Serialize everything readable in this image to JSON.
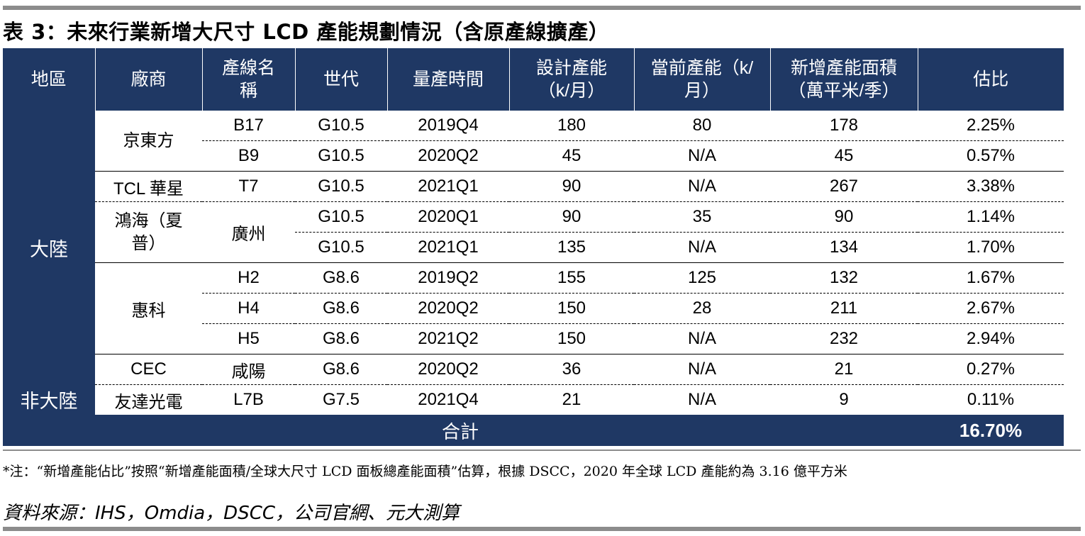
{
  "title": "表 3：未來行業新增大尺寸 LCD 產能規劃情況（含原產線擴產）",
  "headers": {
    "region": "地區",
    "vendor": "廠商",
    "line_name": "產線名稱",
    "generation": "世代",
    "mass_production": "量產時間",
    "design_capacity": "設計產能（k/月）",
    "current_capacity": "當前產能（k/月）",
    "new_area": "新增產能面積（萬平米/季）",
    "share": "估比"
  },
  "regions": {
    "mainland": "大陸",
    "non_mainland": "非大陸"
  },
  "vendors": {
    "boe": "京東方",
    "tcl": "TCL 華星",
    "foxconn": "鴻海（夏普）",
    "foxconn_line": "廣州",
    "hkc": "惠科",
    "cec": "CEC",
    "auo": "友達光電"
  },
  "rows": [
    {
      "line": "B17",
      "gen": "G10.5",
      "time": "2019Q4",
      "design": "180",
      "current": "80",
      "area": "178",
      "share": "2.25%"
    },
    {
      "line": "B9",
      "gen": "G10.5",
      "time": "2020Q2",
      "design": "45",
      "current": "N/A",
      "area": "45",
      "share": "0.57%"
    },
    {
      "line": "T7",
      "gen": "G10.5",
      "time": "2021Q1",
      "design": "90",
      "current": "N/A",
      "area": "267",
      "share": "3.38%"
    },
    {
      "line": "",
      "gen": "G10.5",
      "time": "2020Q1",
      "design": "90",
      "current": "35",
      "area": "90",
      "share": "1.14%"
    },
    {
      "line": "",
      "gen": "G10.5",
      "time": "2021Q1",
      "design": "135",
      "current": "N/A",
      "area": "134",
      "share": "1.70%"
    },
    {
      "line": "H2",
      "gen": "G8.6",
      "time": "2019Q2",
      "design": "155",
      "current": "125",
      "area": "132",
      "share": "1.67%"
    },
    {
      "line": "H4",
      "gen": "G8.6",
      "time": "2020Q2",
      "design": "150",
      "current": "28",
      "area": "211",
      "share": "2.67%"
    },
    {
      "line": "H5",
      "gen": "G8.6",
      "time": "2021Q2",
      "design": "150",
      "current": "N/A",
      "area": "232",
      "share": "2.94%"
    },
    {
      "line": "咸陽",
      "gen": "G8.6",
      "time": "2020Q2",
      "design": "36",
      "current": "N/A",
      "area": "21",
      "share": "0.27%"
    },
    {
      "line": "L7B",
      "gen": "G7.5",
      "time": "2021Q4",
      "design": "21",
      "current": "N/A",
      "area": "9",
      "share": "0.11%"
    }
  ],
  "total": {
    "label": "合計",
    "value": "16.70%"
  },
  "note": "*注：“新增產能佔比”按照“新增產能面積/全球大尺寸 LCD 面板總產能面積”估算，根據 DSCC，2020 年全球 LCD 產能約為 3.16 億平方米",
  "source": "資料來源：IHS，Omdia，DSCC，公司官網、元大測算"
}
